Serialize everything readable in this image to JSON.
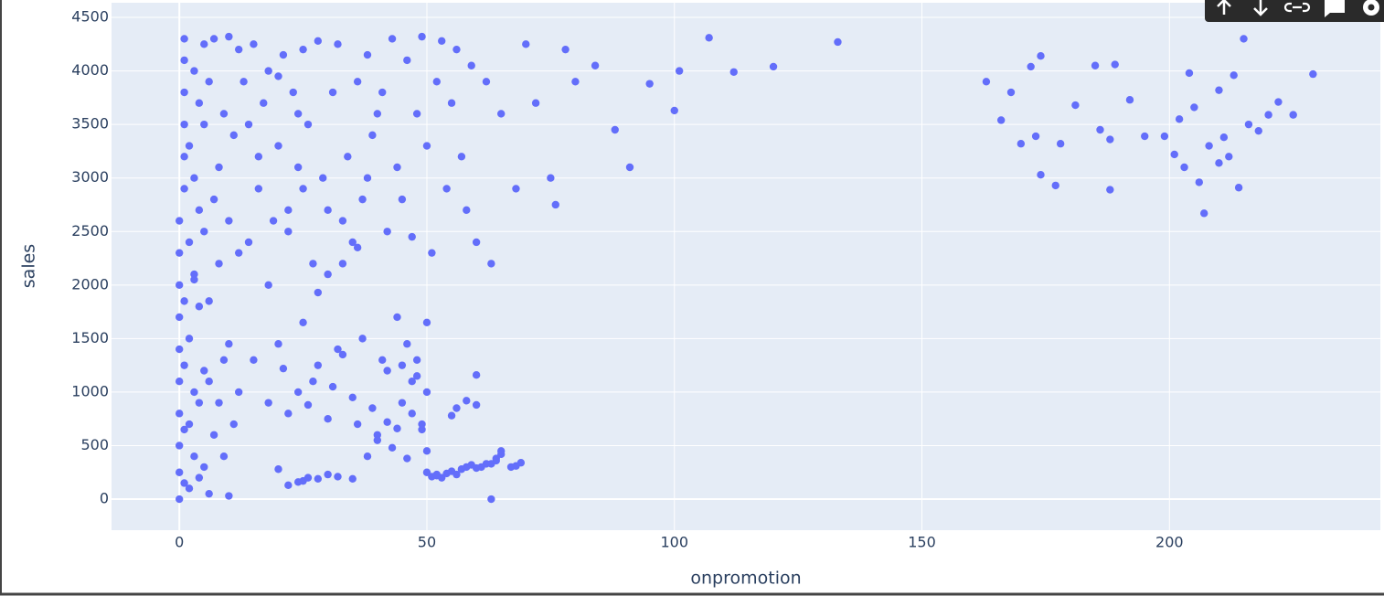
{
  "chart_data": {
    "type": "scatter",
    "x_label": "onpromotion",
    "y_label": "sales",
    "xlim": [
      -13.7,
      242.6
    ],
    "ylim": [
      -290,
      4637
    ],
    "xticks": [
      0,
      50,
      100,
      150,
      200
    ],
    "yticks": [
      0,
      500,
      1000,
      1500,
      2000,
      2500,
      3000,
      3500,
      4000,
      4500
    ],
    "grid": true,
    "background": "#e5ecf6",
    "series": [
      {
        "color": "#636efa",
        "x": [
          0,
          0,
          0,
          0,
          0,
          0,
          0,
          0,
          0,
          0,
          1,
          1,
          1,
          1,
          1,
          1,
          1,
          1,
          1,
          1,
          2,
          2,
          2,
          2,
          2,
          3,
          3,
          3,
          3,
          3,
          4,
          4,
          4,
          4,
          4,
          5,
          5,
          5,
          5,
          5,
          6,
          6,
          6,
          7,
          7,
          7,
          8,
          8,
          8,
          9,
          9,
          9,
          10,
          10,
          10,
          11,
          11,
          12,
          12,
          12,
          13,
          14,
          15,
          16,
          17,
          18,
          19,
          20,
          21,
          22,
          23,
          24,
          25,
          14,
          16,
          18,
          20,
          22,
          24,
          25,
          26,
          27,
          28,
          29,
          30,
          31,
          32,
          33,
          34,
          35,
          36,
          37,
          38,
          39,
          40,
          28,
          30,
          33,
          36,
          38,
          41,
          42,
          43,
          44,
          45,
          46,
          47,
          48,
          49,
          50,
          51,
          52,
          53,
          54,
          55,
          56,
          57,
          58,
          59,
          60,
          62,
          63,
          65,
          68,
          70,
          72,
          75,
          76,
          78,
          80,
          84,
          88,
          91,
          95,
          100,
          101,
          107,
          112,
          120,
          133,
          163,
          166,
          168,
          172,
          174,
          174,
          177,
          181,
          185,
          188,
          188,
          192,
          199,
          201,
          204,
          206,
          207,
          210,
          214,
          220,
          170,
          173,
          178,
          186,
          189,
          195,
          202,
          205,
          208,
          210,
          212,
          213,
          215,
          216,
          218,
          222,
          225,
          229,
          203,
          211,
          15,
          18,
          20,
          22,
          25,
          27,
          30,
          32,
          35,
          37,
          40,
          42,
          44,
          45,
          46,
          47,
          48,
          49,
          50,
          50,
          36,
          38,
          39,
          40,
          41,
          42,
          43,
          44,
          45,
          46,
          47,
          48,
          49,
          50,
          33,
          31,
          28,
          26,
          24,
          21,
          20,
          22,
          24,
          25,
          26,
          28,
          30,
          32,
          35,
          51,
          52,
          53,
          54,
          55,
          56,
          57,
          58,
          59,
          60,
          62,
          60,
          61,
          63,
          64,
          65,
          68,
          69,
          56,
          58,
          60,
          55,
          63,
          64,
          65,
          67,
          50,
          52,
          10,
          6,
          3
        ],
        "values": [
          0,
          250,
          500,
          800,
          1100,
          1400,
          1700,
          2000,
          2300,
          2600,
          2900,
          3200,
          3500,
          3800,
          4100,
          4300,
          150,
          650,
          1250,
          1850,
          100,
          700,
          1500,
          2400,
          3300,
          400,
          1000,
          2100,
          3000,
          4000,
          200,
          900,
          1800,
          2700,
          3700,
          300,
          1200,
          2500,
          3500,
          4250,
          50,
          1100,
          3900,
          600,
          2800,
          4300,
          900,
          3100,
          2200,
          400,
          1300,
          3600,
          30,
          2600,
          4320,
          700,
          3400,
          1000,
          2300,
          4200,
          3900,
          3500,
          4250,
          2900,
          3700,
          4000,
          2600,
          3300,
          4150,
          2700,
          3800,
          3100,
          4200,
          2400,
          3200,
          2000,
          3950,
          2500,
          3600,
          2900,
          3500,
          2200,
          4280,
          3000,
          2700,
          3800,
          4250,
          2600,
          3200,
          2400,
          3900,
          2800,
          4150,
          3400,
          3600,
          1930,
          2100,
          2200,
          2350,
          3000,
          3800,
          2500,
          4300,
          3100,
          2800,
          4100,
          2450,
          3600,
          4320,
          3300,
          2300,
          3900,
          4280,
          2900,
          3700,
          4200,
          3200,
          2700,
          4050,
          2400,
          3900,
          2200,
          3600,
          2900,
          4250,
          3700,
          3000,
          2750,
          4200,
          3900,
          4050,
          3450,
          3100,
          3880,
          3630,
          4000,
          4310,
          3990,
          4040,
          4270,
          3900,
          3540,
          3800,
          4040,
          3030,
          4140,
          2930,
          3680,
          4050,
          2890,
          3360,
          3730,
          3390,
          3220,
          3980,
          2960,
          2670,
          3820,
          2910,
          3590,
          3320,
          3390,
          3320,
          3450,
          4060,
          3390,
          3550,
          3660,
          3300,
          3140,
          3200,
          3960,
          4300,
          3500,
          3440,
          3710,
          3590,
          3970,
          3100,
          3380,
          1300,
          900,
          1450,
          800,
          1650,
          1100,
          750,
          1400,
          950,
          1500,
          600,
          1200,
          1700,
          900,
          1450,
          1100,
          1300,
          650,
          1650,
          1000,
          700,
          400,
          850,
          550,
          1300,
          720,
          480,
          660,
          1250,
          380,
          800,
          1150,
          700,
          450,
          1350,
          1050,
          1250,
          880,
          1000,
          1220,
          280,
          130,
          160,
          170,
          200,
          190,
          230,
          210,
          190,
          210,
          230,
          200,
          240,
          260,
          230,
          280,
          300,
          320,
          290,
          330,
          1160,
          300,
          0,
          360,
          450,
          310,
          340,
          850,
          920,
          880,
          780,
          330,
          380,
          420,
          300,
          250,
          220,
          1450,
          1850,
          2050
        ]
      }
    ]
  }
}
